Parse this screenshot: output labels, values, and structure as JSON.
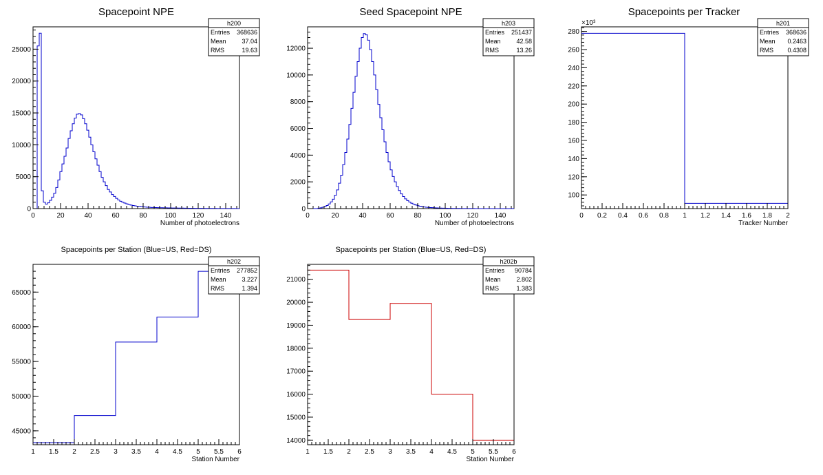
{
  "chart_data": [
    {
      "id": "h200",
      "type": "histogram",
      "title": "Spacepoint NPE",
      "xlabel": "Number of photoelectrons",
      "ylabel": "",
      "xlim": [
        0,
        150
      ],
      "ylim": [
        0,
        28500
      ],
      "x_ticks": [
        0,
        20,
        40,
        60,
        80,
        100,
        120,
        140
      ],
      "y_ticks": [
        0,
        5000,
        10000,
        15000,
        20000,
        25000
      ],
      "y_multiplier": "",
      "color": "#0000cc",
      "stats": {
        "name": "h200",
        "entries": "368636",
        "mean": "37.04",
        "rms": "19.63"
      },
      "bin_edges_start": 0,
      "bin_width": 1.5,
      "values": [
        0,
        0,
        25500,
        27500,
        2800,
        1000,
        700,
        900,
        1300,
        1800,
        2400,
        3300,
        4500,
        5800,
        7000,
        8200,
        9500,
        11000,
        12200,
        13300,
        14200,
        14800,
        14900,
        14700,
        14100,
        13300,
        12300,
        11200,
        10000,
        8900,
        7800,
        6800,
        5800,
        4900,
        4200,
        3600,
        3000,
        2600,
        2200,
        1900,
        1600,
        1350,
        1150,
        1000,
        860,
        740,
        640,
        560,
        490,
        430,
        380,
        340,
        300,
        270,
        240,
        220,
        200,
        180,
        170,
        160,
        150,
        140,
        130,
        120,
        115,
        110,
        105,
        100,
        95,
        90,
        85,
        80,
        75,
        70,
        65,
        60,
        55,
        50,
        45,
        40,
        38,
        36,
        34,
        32,
        30,
        28,
        26,
        24,
        22,
        20,
        18,
        16,
        14,
        12,
        10,
        9,
        8,
        7,
        6,
        5
      ]
    },
    {
      "id": "h203",
      "type": "histogram",
      "title": "Seed Spacepoint NPE",
      "xlabel": "Number of photoelectrons",
      "ylabel": "",
      "xlim": [
        0,
        150
      ],
      "ylim": [
        0,
        13600
      ],
      "x_ticks": [
        0,
        20,
        40,
        60,
        80,
        100,
        120,
        140
      ],
      "y_ticks": [
        0,
        2000,
        4000,
        6000,
        8000,
        10000,
        12000
      ],
      "y_multiplier": "",
      "color": "#0000cc",
      "stats": {
        "name": "h203",
        "entries": "251437",
        "mean": "42.58",
        "rms": "13.26"
      },
      "bin_edges_start": 0,
      "bin_width": 1.5,
      "values": [
        0,
        0,
        0,
        0,
        0,
        30,
        60,
        100,
        150,
        230,
        350,
        500,
        700,
        1000,
        1400,
        1900,
        2500,
        3300,
        4200,
        5200,
        6300,
        7500,
        8700,
        9900,
        11000,
        12000,
        12800,
        13100,
        13000,
        12600,
        11900,
        11000,
        10000,
        8900,
        7800,
        6800,
        5900,
        5000,
        4200,
        3500,
        2900,
        2400,
        2000,
        1650,
        1350,
        1100,
        900,
        730,
        600,
        490,
        400,
        330,
        270,
        220,
        180,
        150,
        125,
        105,
        90,
        78,
        68,
        60,
        52,
        46,
        40,
        35,
        30,
        26,
        22,
        19,
        16,
        14,
        12,
        10,
        9,
        8,
        7,
        6,
        5,
        4,
        4,
        3,
        3,
        2,
        2,
        2,
        1,
        1,
        1,
        1,
        1,
        1,
        1,
        0,
        0,
        0,
        0,
        0,
        0,
        0
      ]
    },
    {
      "id": "h201",
      "type": "histogram",
      "title": "Spacepoints per Tracker",
      "xlabel": "Tracker Number",
      "ylabel": "",
      "xlim": [
        0,
        2
      ],
      "ylim": [
        85,
        285
      ],
      "x_ticks": [
        0,
        0.2,
        0.4,
        0.6,
        0.8,
        1,
        1.2,
        1.4,
        1.6,
        1.8,
        2
      ],
      "y_ticks": [
        100,
        120,
        140,
        160,
        180,
        200,
        220,
        240,
        260,
        280
      ],
      "y_multiplier": "×10³",
      "color": "#0000cc",
      "stats": {
        "name": "h201",
        "entries": "368636",
        "mean": "0.2463",
        "rms": "0.4308"
      },
      "bin_edges_start": 0,
      "bin_width": 1,
      "values": [
        277.9,
        90.8
      ]
    },
    {
      "id": "h202",
      "type": "histogram",
      "title": "Spacepoints per Station (Blue=US, Red=DS)",
      "xlabel": "Station Number",
      "ylabel": "",
      "xlim": [
        1,
        6
      ],
      "ylim": [
        43000,
        69000
      ],
      "x_ticks": [
        1,
        1.5,
        2,
        2.5,
        3,
        3.5,
        4,
        4.5,
        5,
        5.5,
        6
      ],
      "y_ticks": [
        45000,
        50000,
        55000,
        60000,
        65000
      ],
      "y_multiplier": "",
      "color": "#0000cc",
      "stats": {
        "name": "h202",
        "entries": "277852",
        "mean": "3.227",
        "rms": "1.394"
      },
      "bin_edges_start": 1,
      "bin_width": 1,
      "values": [
        43300,
        47200,
        57800,
        61400,
        68000
      ]
    },
    {
      "id": "h202b",
      "type": "histogram",
      "title": "Spacepoints per Station (Blue=US, Red=DS)",
      "xlabel": "Station Number",
      "ylabel": "",
      "xlim": [
        1,
        6
      ],
      "ylim": [
        13800,
        21650
      ],
      "x_ticks": [
        1,
        1.5,
        2,
        2.5,
        3,
        3.5,
        4,
        4.5,
        5,
        5.5,
        6
      ],
      "y_ticks": [
        14000,
        15000,
        16000,
        17000,
        18000,
        19000,
        20000,
        21000
      ],
      "y_multiplier": "",
      "color": "#cc0000",
      "stats": {
        "name": "h202b",
        "entries": "90784",
        "mean": "2.802",
        "rms": "1.383"
      },
      "bin_edges_start": 1,
      "bin_width": 1,
      "values": [
        21400,
        19250,
        19950,
        16000,
        14000
      ]
    }
  ],
  "stat_labels": {
    "entries": "Entries",
    "mean": "Mean",
    "rms": "RMS"
  }
}
